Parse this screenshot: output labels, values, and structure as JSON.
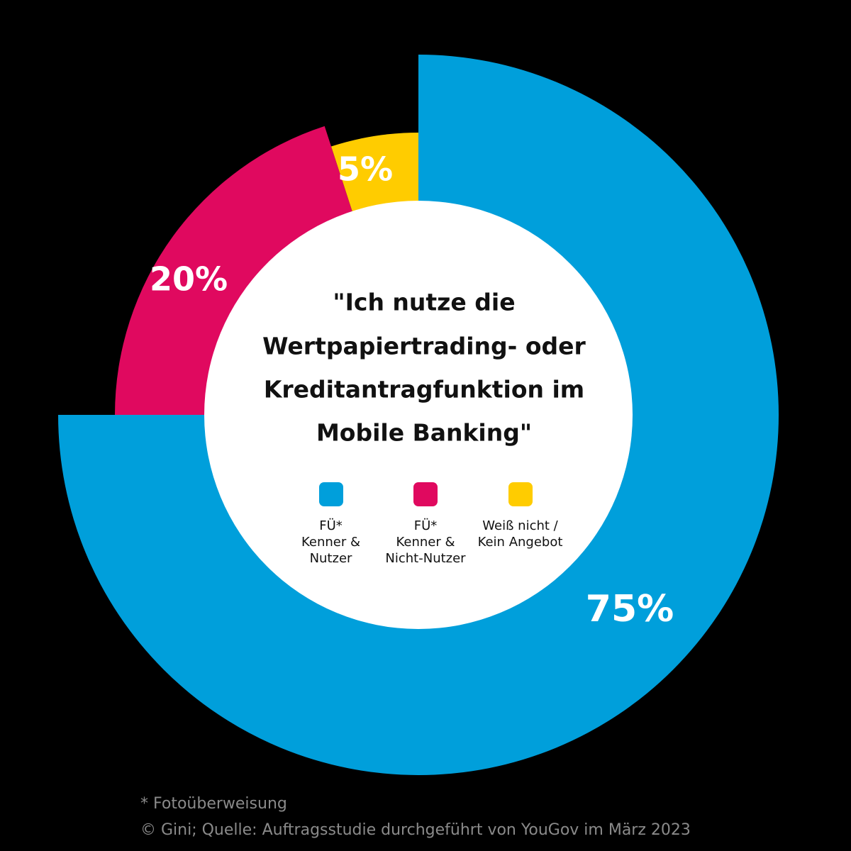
{
  "chart_data": {
    "type": "pie",
    "title": "\"Ich nutze die Wertpapiertrading- oder Kreditantragfunktion im Mobile Banking\"",
    "title_lines": [
      "\"Ich nutze die",
      "Wertpapiertrading- oder",
      "Kreditantragfunktion im",
      "Mobile Banking\""
    ],
    "style": "donut",
    "categories": [
      "FÜ* Kenner & Nutzer",
      "FÜ* Kenner & Nicht-Nutzer",
      "Weiß nicht / Kein Angebot"
    ],
    "values": [
      75,
      20,
      5
    ],
    "value_labels": [
      "75%",
      "20%",
      "5%"
    ],
    "colors": [
      "#009fdb",
      "#e0095f",
      "#ffcc00"
    ],
    "legend": [
      {
        "label": "FÜ*\nKenner &\nNutzer",
        "color": "#009fdb"
      },
      {
        "label": "FÜ*\nKenner &\nNicht-Nutzer",
        "color": "#e0095f"
      },
      {
        "label": "Weiß nicht /\nKein Angebot",
        "color": "#ffcc00"
      }
    ],
    "legend_position": "center"
  },
  "footnote": "* Fotoüberweisung",
  "source": "© Gini; Quelle: Auftragsstudie durchgeführt von YouGov im März 2023"
}
